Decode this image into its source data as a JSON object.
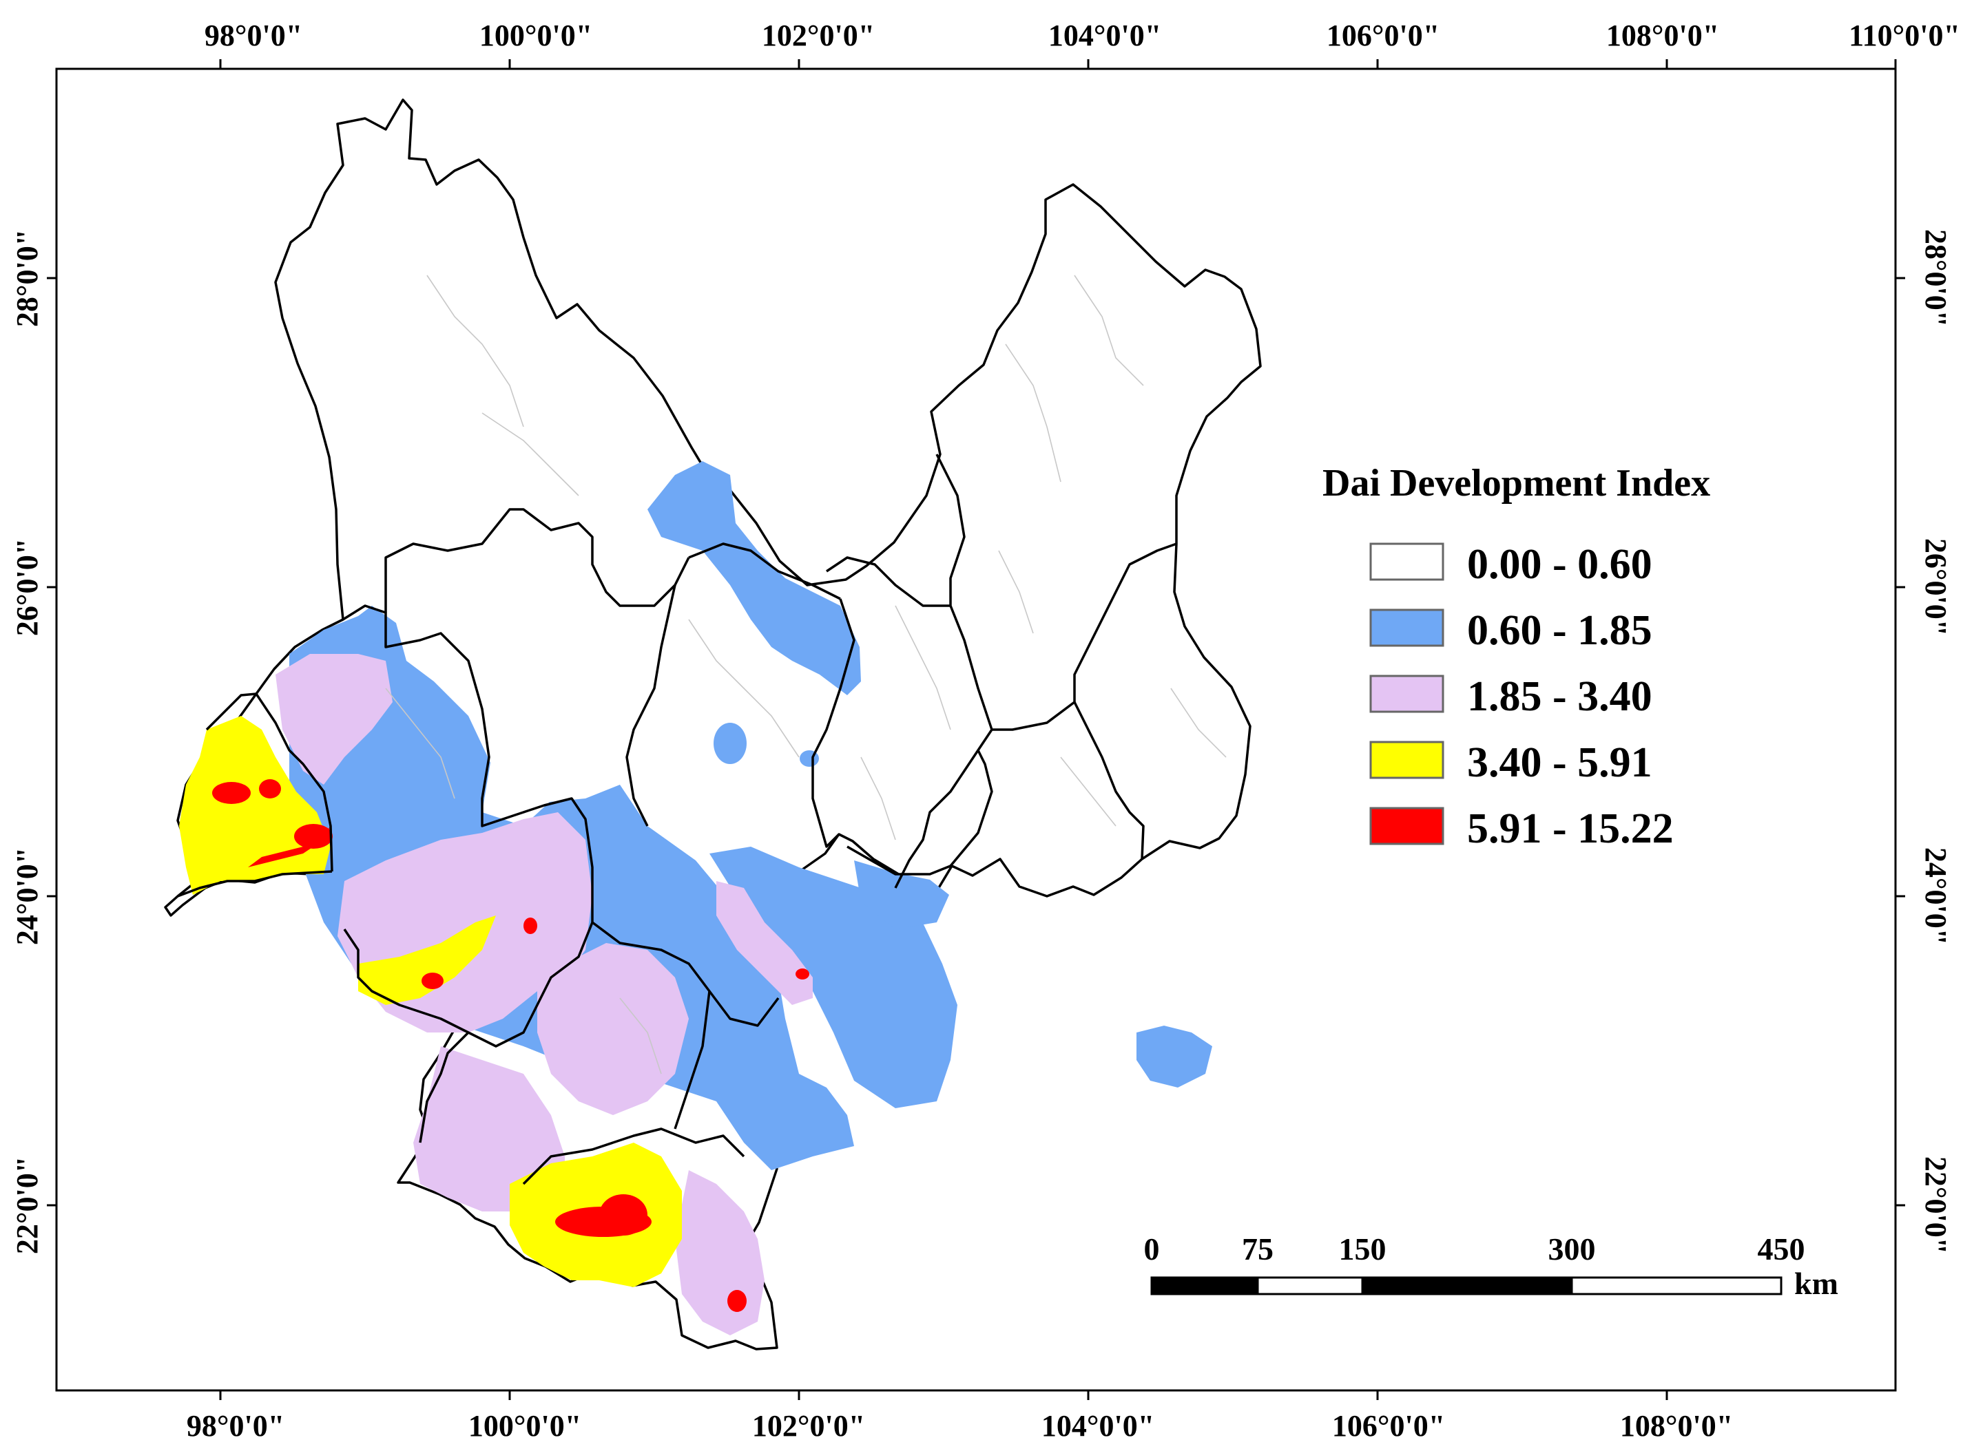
{
  "map": {
    "title": "Dai Development Index",
    "axes": {
      "top_ticks": [
        "98°0'0\"",
        "100°0'0\"",
        "102°0'0\"",
        "104°0'0\"",
        "106°0'0\"",
        "108°0'0\"",
        "110°0'0\""
      ],
      "bottom_ticks": [
        "98°0'0\"",
        "100°0'0\"",
        "102°0'0\"",
        "104°0'0\"",
        "106°0'0\"",
        "108°0'0\""
      ],
      "left_ticks": [
        "28°0'0\"",
        "26°0'0\"",
        "24°0'0\"",
        "22°0'0\""
      ],
      "right_ticks": [
        "28°0'0\"",
        "26°0'0\"",
        "24°0'0\"",
        "22°0'0\""
      ]
    },
    "legend": {
      "title": "Dai Development Index",
      "classes": [
        {
          "label": "0.00 - 0.60",
          "color": "#ffffff",
          "range": [
            0.0,
            0.6
          ]
        },
        {
          "label": "0.60 - 1.85",
          "color": "#6fa8f5",
          "range": [
            0.6,
            1.85
          ]
        },
        {
          "label": "1.85 - 3.40",
          "color": "#e4c4f3",
          "range": [
            1.85,
            3.4
          ]
        },
        {
          "label": "3.40 - 5.91",
          "color": "#ffff00",
          "range": [
            3.4,
            5.91
          ]
        },
        {
          "label": "5.91 - 15.22",
          "color": "#ff0000",
          "range": [
            5.91,
            15.22
          ]
        }
      ]
    },
    "scale_bar": {
      "ticks": [
        "0",
        "75",
        "150",
        "300",
        "450"
      ],
      "unit": "km"
    }
  },
  "colors": {
    "boundary": "#000000",
    "inner_boundary": "#c8c8c8",
    "very_low": "#ffffff",
    "low": "#6fa8f5",
    "medium": "#e4c4f3",
    "high": "#ffff00",
    "very_high": "#ff0000"
  }
}
